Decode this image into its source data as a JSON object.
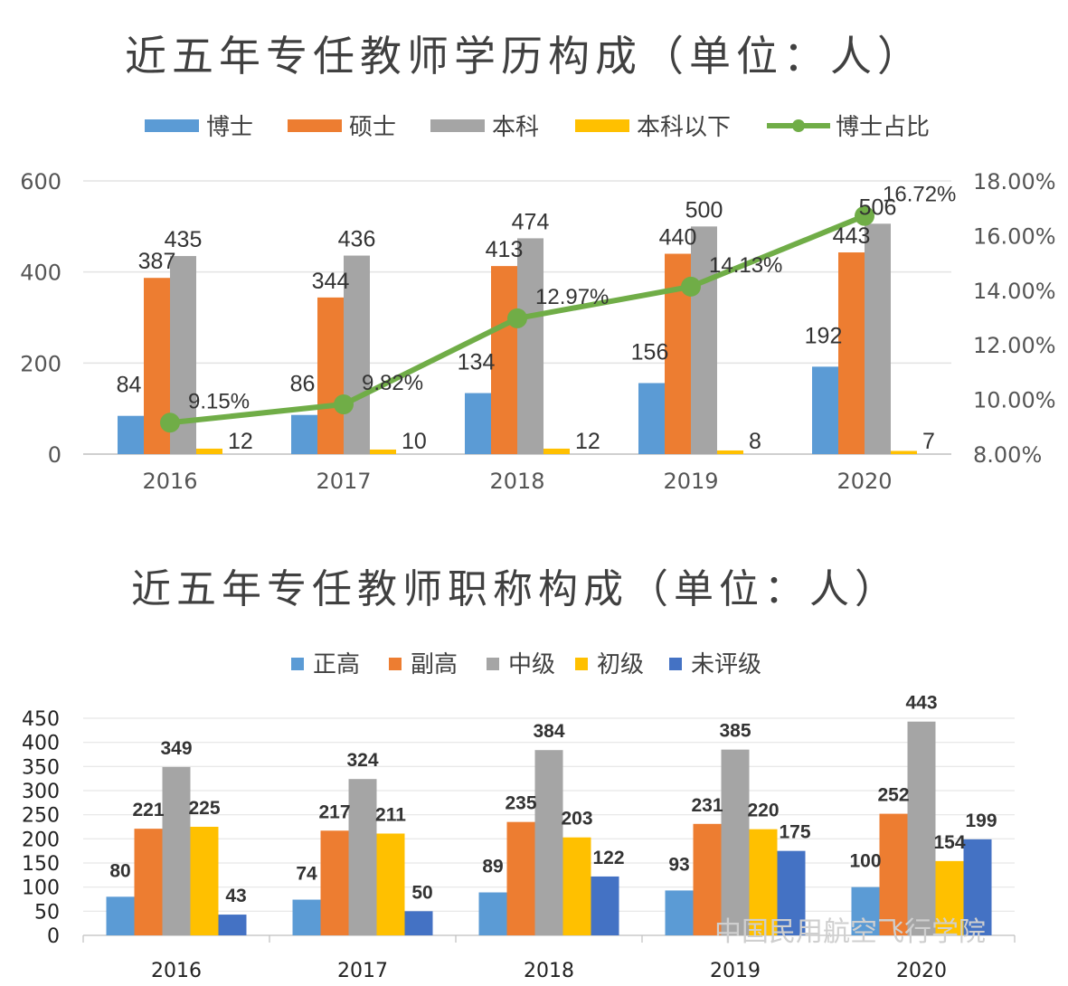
{
  "chart_data": [
    {
      "type": "bar",
      "title": "近五年专任教师学历构成（单位：人）",
      "categories": [
        "2016",
        "2017",
        "2018",
        "2019",
        "2020"
      ],
      "ylim": [
        0,
        600
      ],
      "yticks": [
        "0",
        "200",
        "400",
        "600"
      ],
      "y2lim": [
        8,
        18
      ],
      "y2ticks": [
        "8.00%",
        "10.00%",
        "12.00%",
        "14.00%",
        "16.00%",
        "18.00%"
      ],
      "legend_position": "top",
      "grid": true,
      "series": [
        {
          "name": "博士",
          "color": "#5b9bd5",
          "values": [
            84,
            86,
            134,
            156,
            192
          ],
          "labels": [
            "84",
            "86",
            "134",
            "156",
            "192"
          ]
        },
        {
          "name": "硕士",
          "color": "#ed7d31",
          "values": [
            387,
            344,
            413,
            440,
            443
          ],
          "labels": [
            "387",
            "344",
            "413",
            "440",
            "443"
          ]
        },
        {
          "name": "本科",
          "color": "#a5a5a5",
          "values": [
            435,
            436,
            474,
            500,
            506
          ],
          "labels": [
            "435",
            "436",
            "474",
            "500",
            "506"
          ]
        },
        {
          "name": "本科以下",
          "color": "#ffc000",
          "values": [
            12,
            10,
            12,
            8,
            7
          ],
          "labels": [
            "12",
            "10",
            "12",
            "8",
            "7"
          ]
        }
      ],
      "line_series": {
        "name": "博士占比",
        "color": "#70ad47",
        "axis": "secondary",
        "values": [
          9.15,
          9.82,
          12.97,
          14.13,
          16.72
        ],
        "labels": [
          "9.15%",
          "9.82%",
          "12.97%",
          "14.13%",
          "16.72%"
        ]
      }
    },
    {
      "type": "bar",
      "title": "近五年专任教师职称构成（单位：人）",
      "categories": [
        "2016",
        "2017",
        "2018",
        "2019",
        "2020"
      ],
      "ylim": [
        0,
        450
      ],
      "yticks": [
        "0",
        "50",
        "100",
        "150",
        "200",
        "250",
        "300",
        "350",
        "400",
        "450"
      ],
      "legend_position": "top",
      "grid": true,
      "series": [
        {
          "name": "正高",
          "color": "#5b9bd5",
          "values": [
            80,
            74,
            89,
            93,
            100
          ],
          "labels": [
            "80",
            "74",
            "89",
            "93",
            "100"
          ]
        },
        {
          "name": "副高",
          "color": "#ed7d31",
          "values": [
            221,
            217,
            235,
            231,
            252
          ],
          "labels": [
            "221",
            "217",
            "235",
            "231",
            "252"
          ]
        },
        {
          "name": "中级",
          "color": "#a5a5a5",
          "values": [
            349,
            324,
            384,
            385,
            443
          ],
          "labels": [
            "349",
            "324",
            "384",
            "385",
            "443"
          ]
        },
        {
          "name": "初级",
          "color": "#ffc000",
          "values": [
            225,
            211,
            203,
            220,
            154
          ],
          "labels": [
            "225",
            "211",
            "203",
            "220",
            "154"
          ]
        },
        {
          "name": "未评级",
          "color": "#4472c4",
          "values": [
            43,
            50,
            122,
            175,
            199
          ],
          "labels": [
            "43",
            "50",
            "122",
            "175",
            "199"
          ]
        }
      ]
    }
  ],
  "watermark": "中国民用航空飞行学院"
}
